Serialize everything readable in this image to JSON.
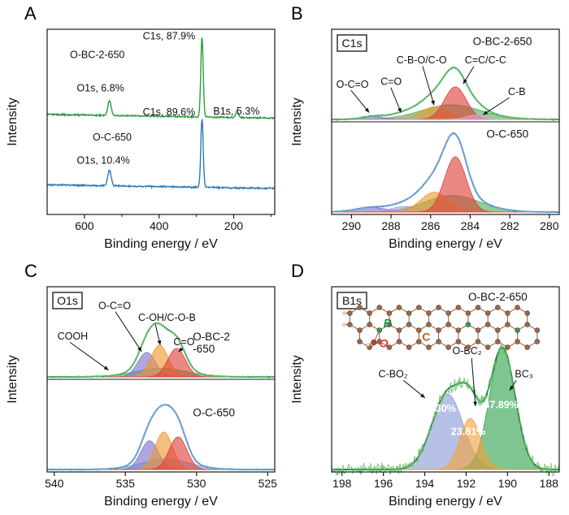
{
  "panels": [
    {
      "letter": "A"
    },
    {
      "letter": "B"
    },
    {
      "letter": "C"
    },
    {
      "letter": "D"
    }
  ],
  "chart_data": [
    {
      "panel": "A",
      "type": "line",
      "kind": "survey",
      "xlabel": "Binding energy / eV",
      "ylabel": "Intensity",
      "x_range": [
        700,
        90
      ],
      "x_ticks": [
        600,
        400,
        200
      ],
      "x_minor_ticks": [
        500,
        300,
        100
      ],
      "series": [
        {
          "name": "O-BC-2-650",
          "color": "#2f9b40",
          "baseline": 0.52,
          "slope": 0.02,
          "peaks": [
            {
              "assign": "C1s",
              "pct": "87.9%",
              "center": 285,
              "sigma": 3.2,
              "height": 0.43
            },
            {
              "assign": "O1s",
              "pct": "6.8%",
              "center": 533,
              "sigma": 4.5,
              "height": 0.08
            },
            {
              "assign": "B1s",
              "pct": "5.3%",
              "center": 191,
              "sigma": 3.5,
              "height": 0.035
            }
          ]
        },
        {
          "name": "O-C-650",
          "color": "#2a7ab9",
          "baseline": 0.14,
          "slope": 0.02,
          "peaks": [
            {
              "assign": "C1s",
              "pct": "89.6%",
              "center": 285,
              "sigma": 3.2,
              "height": 0.37
            },
            {
              "assign": "O1s",
              "pct": "10.4%",
              "center": 533,
              "sigma": 4.5,
              "height": 0.085
            }
          ]
        }
      ],
      "annotations": [
        {
          "text": "O-BC-2-650",
          "fx": 0.1,
          "fy": 0.155
        },
        {
          "text": "C1s, 87.9%",
          "fx": 0.42,
          "fy": 0.055
        },
        {
          "text": "O1s, 6.8%",
          "fx": 0.13,
          "fy": 0.335
        },
        {
          "text": "B1s, 5.3%",
          "fx": 0.73,
          "fy": 0.46
        },
        {
          "text": "O-C-650",
          "fx": 0.2,
          "fy": 0.6
        },
        {
          "text": "C1s, 89.6%",
          "fx": 0.42,
          "fy": 0.465
        },
        {
          "text": "O1s, 10.4%",
          "fx": 0.13,
          "fy": 0.725
        }
      ]
    },
    {
      "panel": "B",
      "type": "line",
      "kind": "fit",
      "label_box": "C1s",
      "xlabel": "Binding energy / eV",
      "ylabel": "Intensity",
      "x_range": [
        291,
        279.5
      ],
      "x_ticks": [
        290,
        288,
        286,
        284,
        282,
        280
      ],
      "subpanels": [
        {
          "name_lines": [
            "O-BC-2-650"
          ],
          "name_fx": 0.62,
          "name_fy": 0.17,
          "envelope_color": "#2f9b40",
          "raw_color": "#79c67e",
          "raw_amp": 0.015,
          "env_frac": 0.56,
          "components": [
            {
              "label": "O-C=O",
              "center": 288.9,
              "sigma": 0.55,
              "height": 0.09,
              "color": "#7d72cf"
            },
            {
              "label": "C=O",
              "center": 287.4,
              "sigma": 0.62,
              "height": 0.11,
              "color": "#a9b8a2"
            },
            {
              "label": "C-B-O/C-O",
              "center": 285.8,
              "sigma": 0.7,
              "height": 0.38,
              "color": "#f0962f"
            },
            {
              "label": "C=C/C-C",
              "center": 284.75,
              "sigma": 0.55,
              "height": 1.0,
              "color": "#df3f3a"
            },
            {
              "label": "broad",
              "center": 284.95,
              "sigma": 1.5,
              "height": 0.45,
              "color": "#4daf5b"
            },
            {
              "label": "C-B",
              "center": 283.7,
              "sigma": 0.5,
              "height": 0.13,
              "color": "#e59fd0"
            }
          ]
        },
        {
          "name_lines": [
            "O-C-650"
          ],
          "name_fx": 0.68,
          "name_fy": 0.17,
          "envelope_color": "#3577c0",
          "raw_color": "#8fb8dd",
          "raw_amp": 0.015,
          "env_frac": 0.85,
          "components": [
            {
              "center": 289.0,
              "sigma": 0.8,
              "height": 0.08,
              "color": "#7d72cf"
            },
            {
              "center": 287.3,
              "sigma": 0.7,
              "height": 0.1,
              "color": "#b39ddb"
            },
            {
              "center": 285.8,
              "sigma": 0.7,
              "height": 0.36,
              "color": "#f0962f"
            },
            {
              "center": 284.75,
              "sigma": 0.55,
              "height": 1.0,
              "color": "#df3f3a"
            },
            {
              "center": 284.9,
              "sigma": 1.4,
              "height": 0.3,
              "color": "#4daf5b"
            }
          ]
        }
      ],
      "annotations": [
        {
          "text": "O-C=O",
          "fx": 0.02,
          "fy": 0.315,
          "arrow": [
            0.085,
            0.33,
            0.165,
            0.45
          ]
        },
        {
          "text": "C=O",
          "fx": 0.215,
          "fy": 0.3,
          "arrow": [
            0.26,
            0.315,
            0.305,
            0.45
          ]
        },
        {
          "text": "C-B-O/C-O",
          "fx": 0.285,
          "fy": 0.185,
          "arrow": [
            0.4,
            0.2,
            0.45,
            0.41
          ]
        },
        {
          "text": "C=C/C-C",
          "fx": 0.585,
          "fy": 0.185,
          "arrow": [
            0.625,
            0.2,
            0.578,
            0.295
          ]
        },
        {
          "text": "C-B",
          "fx": 0.775,
          "fy": 0.355,
          "arrow": [
            0.78,
            0.37,
            0.665,
            0.462
          ]
        }
      ]
    },
    {
      "panel": "C",
      "type": "line",
      "kind": "fit",
      "label_box": "O1s",
      "xlabel": "Binding energy / eV",
      "ylabel": "Intensity",
      "x_range": [
        540.5,
        524.5
      ],
      "x_ticks": [
        540,
        535,
        530,
        525
      ],
      "subpanels": [
        {
          "name_lines": [
            "O-BC-2",
            "-650"
          ],
          "name_fx": 0.64,
          "name_fy": 0.58,
          "envelope_color": "#2f9b40",
          "raw_color": "#79c67e",
          "raw_amp": 0.015,
          "env_frac": 0.58,
          "components": [
            {
              "label": "O-C=O",
              "center": 533.5,
              "sigma": 0.62,
              "height": 0.62,
              "color": "#7d72cf"
            },
            {
              "label": "C-OH/C-O-B",
              "center": 532.6,
              "sigma": 0.62,
              "height": 0.8,
              "color": "#f0962f"
            },
            {
              "label": "C=O",
              "center": 531.4,
              "sigma": 0.62,
              "height": 0.72,
              "color": "#df3f3a"
            },
            {
              "label": "broad",
              "center": 532.5,
              "sigma": 1.8,
              "height": 0.22,
              "color": "#4daf5b"
            }
          ]
        },
        {
          "name_lines": [
            "O-C-650"
          ],
          "name_fx": 0.64,
          "name_fy": 0.4,
          "envelope_color": "#3577c0",
          "raw_color": "#8fb8dd",
          "raw_amp": 0.015,
          "env_frac": 0.7,
          "components": [
            {
              "center": 533.3,
              "sigma": 0.62,
              "height": 0.6,
              "color": "#7d72cf"
            },
            {
              "center": 532.3,
              "sigma": 0.62,
              "height": 0.78,
              "color": "#f0962f"
            },
            {
              "center": 531.3,
              "sigma": 0.62,
              "height": 0.68,
              "color": "#df3f3a"
            },
            {
              "center": 532.2,
              "sigma": 1.7,
              "height": 0.22,
              "color": "#74b2dd"
            }
          ]
        }
      ],
      "annotations": [
        {
          "text": "COOH",
          "fx": 0.045,
          "fy": 0.285,
          "arrow": [
            0.1,
            0.3,
            0.27,
            0.45
          ]
        },
        {
          "text": "O-C=O",
          "fx": 0.225,
          "fy": 0.12,
          "arrow": [
            0.3,
            0.135,
            0.415,
            0.35
          ]
        },
        {
          "text": "C-OH/C-O-B",
          "fx": 0.4,
          "fy": 0.185,
          "arrow": [
            0.475,
            0.2,
            0.497,
            0.315
          ]
        },
        {
          "text": "C=O",
          "fx": 0.555,
          "fy": 0.315,
          "arrow": [
            0.595,
            0.33,
            0.578,
            0.352
          ]
        }
      ]
    },
    {
      "panel": "D",
      "type": "line",
      "kind": "fit",
      "label_box": "B1s",
      "xlabel": "Binding energy / eV",
      "ylabel": "Intensity",
      "x_range": [
        198.5,
        187.5
      ],
      "x_ticks": [
        198,
        196,
        194,
        192,
        190,
        188
      ],
      "subpanels": [
        {
          "name_lines": [
            "O-BC-2-650"
          ],
          "name_fx": 0.6,
          "name_fy": 0.075,
          "envelope_color": "#1b7e3c",
          "raw_color": "#6abf69",
          "raw_amp": 0.04,
          "env_frac": 0.66,
          "components": [
            {
              "label": "C-BO₂",
              "pct": "28.30%",
              "center": 192.9,
              "sigma": 0.75,
              "height": 0.62,
              "color": "#8b9bd8"
            },
            {
              "label": "O-BC₂",
              "pct": "23.81%",
              "center": 191.8,
              "sigma": 0.5,
              "height": 0.42,
              "color": "#f2a33c"
            },
            {
              "label": "BC₃",
              "pct": "47.89%",
              "center": 190.25,
              "sigma": 0.62,
              "height": 1.0,
              "color": "#2ea24e"
            }
          ]
        }
      ],
      "annotations": [
        {
          "text": "C-BO₂",
          "fx": 0.27,
          "fy": 0.49,
          "anchor": "middle",
          "arrow": [
            0.315,
            0.505,
            0.41,
            0.6
          ]
        },
        {
          "text": "28.30%",
          "fx": 0.47,
          "fy": 0.675,
          "anchor": "middle",
          "color": "#ffffff",
          "bold": true
        },
        {
          "text": "O-BC₂",
          "fx": 0.595,
          "fy": 0.365,
          "anchor": "middle",
          "arrow": [
            0.615,
            0.385,
            0.632,
            0.645
          ]
        },
        {
          "text": "23.81%",
          "fx": 0.6,
          "fy": 0.8,
          "anchor": "middle",
          "color": "#ffffff",
          "bold": true
        },
        {
          "text": "BC₃",
          "fx": 0.845,
          "fy": 0.49,
          "anchor": "middle",
          "arrow": [
            0.812,
            0.505,
            0.782,
            0.56
          ]
        },
        {
          "text": "47.89%",
          "fx": 0.745,
          "fy": 0.655,
          "anchor": "middle",
          "color": "#ffffff",
          "bold": true
        }
      ],
      "inset": {
        "fx": 0.08,
        "fy": 0.112,
        "fw": 0.85,
        "fh": 0.215,
        "atom_colors": {
          "C": "#9b6a4a",
          "B": "#2e9e4f",
          "O": "#d63c2f",
          "H": "#efe9e3"
        },
        "labels": [
          {
            "text": "B",
            "color": "#1d8a3e"
          },
          {
            "text": "C",
            "color": "#b4651f"
          },
          {
            "text": "O",
            "color": "#d63c2f"
          }
        ]
      }
    }
  ]
}
